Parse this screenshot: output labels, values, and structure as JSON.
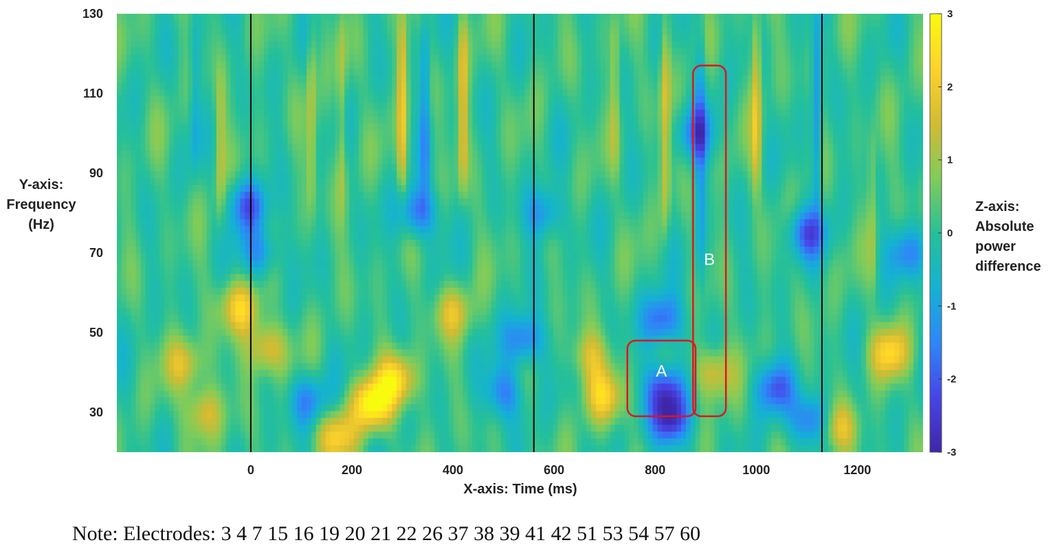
{
  "chart_data": {
    "type": "heatmap",
    "title": "",
    "xlabel": "X-axis: Time (ms)",
    "ylabel_lines": [
      "Y-axis:",
      "Frequency",
      "(Hz)"
    ],
    "zlabel_lines": [
      "Z-axis:",
      "Absolute",
      "power",
      "difference"
    ],
    "xlim": [
      -265,
      1330
    ],
    "ylim": [
      20,
      130
    ],
    "zlim": [
      -3,
      3
    ],
    "x_ticks": [
      0,
      200,
      400,
      600,
      800,
      1000,
      1200
    ],
    "x_tick_labels": [
      "0",
      "200",
      "400",
      "600",
      "800",
      "1000",
      "1200"
    ],
    "y_ticks": [
      30,
      50,
      70,
      90,
      110,
      130
    ],
    "y_tick_labels": [
      "30",
      "50",
      "70",
      "90",
      "110",
      "130"
    ],
    "colorbar_ticks": [
      3,
      2,
      1,
      0,
      -1,
      -2,
      -3
    ],
    "colorbar_tick_labels": [
      "3",
      "2",
      "1",
      "0",
      "-1",
      "-2",
      "-3"
    ],
    "colormap": [
      "#3e26a8",
      "#4745e7",
      "#2e87f7",
      "#14b2d3",
      "#26c098",
      "#81cc59",
      "#d3bb32",
      "#fdd22b",
      "#f9fb0e"
    ],
    "vertical_markers_ms": [
      0,
      560,
      1130
    ],
    "regions": [
      {
        "label": "A",
        "time_range_ms": [
          745,
          880
        ],
        "freq_range_hz": [
          29,
          48
        ]
      },
      {
        "label": "B",
        "time_range_ms": [
          875,
          940
        ],
        "freq_range_hz": [
          29,
          117
        ]
      }
    ],
    "hotspots": [
      {
        "time_ms": 240,
        "freq_hz": 32,
        "z": 2.9
      },
      {
        "time_ms": 290,
        "freq_hz": 38,
        "z": 2.3
      },
      {
        "time_ms": 170,
        "freq_hz": 24,
        "z": 2.0
      },
      {
        "time_ms": -20,
        "freq_hz": 56,
        "z": 2.0
      },
      {
        "time_ms": 30,
        "freq_hz": 46,
        "z": 1.9
      },
      {
        "time_ms": -130,
        "freq_hz": 42,
        "z": 1.6
      },
      {
        "time_ms": -95,
        "freq_hz": 30,
        "z": 1.6
      },
      {
        "time_ms": 400,
        "freq_hz": 55,
        "z": 1.4
      },
      {
        "time_ms": 700,
        "freq_hz": 34,
        "z": 1.9
      },
      {
        "time_ms": 670,
        "freq_hz": 44,
        "z": 1.4
      },
      {
        "time_ms": 915,
        "freq_hz": 40,
        "z": 1.8
      },
      {
        "time_ms": 1265,
        "freq_hz": 45,
        "z": 2.0
      },
      {
        "time_ms": 1165,
        "freq_hz": 26,
        "z": 1.7
      },
      {
        "time_ms": 820,
        "freq_hz": 36,
        "z": -2.3
      },
      {
        "time_ms": 830,
        "freq_hz": 28,
        "z": -2.7
      },
      {
        "time_ms": 815,
        "freq_hz": 53,
        "z": -2.2
      },
      {
        "time_ms": 1035,
        "freq_hz": 36,
        "z": -2.0
      },
      {
        "time_ms": 1110,
        "freq_hz": 28,
        "z": -2.0
      },
      {
        "time_ms": 500,
        "freq_hz": 35,
        "z": -1.7
      },
      {
        "time_ms": 115,
        "freq_hz": 33,
        "z": -1.6
      },
      {
        "time_ms": 540,
        "freq_hz": 48,
        "z": -2.0
      },
      {
        "time_ms": -5,
        "freq_hz": 82,
        "z": -2.0
      },
      {
        "time_ms": 330,
        "freq_hz": 80,
        "z": -2.0
      },
      {
        "time_ms": 1100,
        "freq_hz": 75,
        "z": -2.0
      },
      {
        "time_ms": 20,
        "freq_hz": 70,
        "z": -1.6
      },
      {
        "time_ms": 880,
        "freq_hz": 100,
        "z": -1.6
      },
      {
        "time_ms": 1300,
        "freq_hz": 70,
        "z": -1.5
      },
      {
        "time_ms": 580,
        "freq_hz": 80,
        "z": -1.5
      }
    ],
    "vertical_streaks": [
      {
        "time_ms": 300,
        "freq_range_hz": [
          85,
          130
        ],
        "z": 1.8
      },
      {
        "time_ms": 420,
        "freq_range_hz": [
          85,
          130
        ],
        "z": 1.6
      },
      {
        "time_ms": 820,
        "freq_range_hz": [
          75,
          130
        ],
        "z": 1.5
      },
      {
        "time_ms": 1000,
        "freq_range_hz": [
          85,
          130
        ],
        "z": 1.6
      },
      {
        "time_ms": -60,
        "freq_range_hz": [
          75,
          115
        ],
        "z": 1.0
      },
      {
        "time_ms": 120,
        "freq_range_hz": [
          80,
          130
        ],
        "z": 1.0
      },
      {
        "time_ms": 180,
        "freq_range_hz": [
          80,
          130
        ],
        "z": 1.0
      },
      {
        "time_ms": 720,
        "freq_range_hz": [
          90,
          130
        ],
        "z": 0.9
      },
      {
        "time_ms": 1230,
        "freq_range_hz": [
          60,
          100
        ],
        "z": 0.8
      },
      {
        "time_ms": 345,
        "freq_range_hz": [
          85,
          130
        ],
        "z": -1.3
      },
      {
        "time_ms": 1120,
        "freq_range_hz": [
          80,
          130
        ],
        "z": -1.5
      },
      {
        "time_ms": 890,
        "freq_range_hz": [
          60,
          130
        ],
        "z": -1.2
      },
      {
        "time_ms": -110,
        "freq_range_hz": [
          90,
          130
        ],
        "z": -0.8
      }
    ]
  },
  "note": "Note: Electrodes: 3 4 7 15 16 19 20 21 22 26 37 38 39 41 42 51 53 54 57 60"
}
